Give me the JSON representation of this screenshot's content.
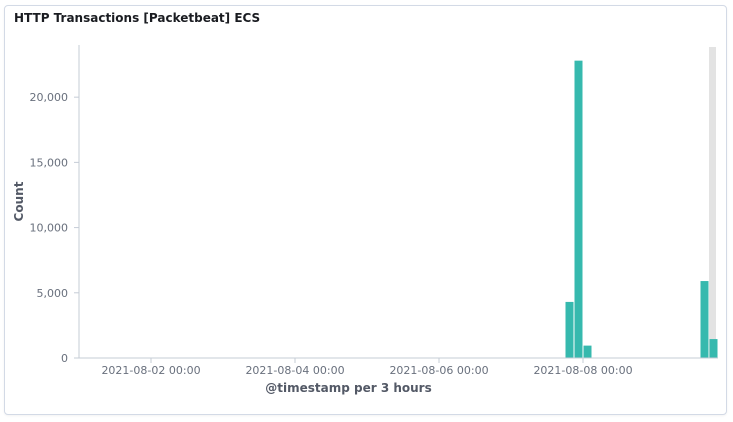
{
  "panel": {
    "title": "HTTP Transactions [Packetbeat] ECS"
  },
  "chart_data": {
    "type": "bar",
    "title": "HTTP Transactions [Packetbeat] ECS",
    "xlabel": "@timestamp per 3 hours",
    "ylabel": "Count",
    "ylim": [
      0,
      24000
    ],
    "y_ticks": [
      0,
      5000,
      10000,
      15000,
      20000
    ],
    "y_tick_labels": [
      "0",
      "5,000",
      "10,000",
      "15,000",
      "20,000"
    ],
    "x_range": [
      "2021-08-01 00:00",
      "2021-08-09 18:00"
    ],
    "x_tick_labels": [
      "2021-08-02 00:00",
      "2021-08-04 00:00",
      "2021-08-06 00:00",
      "2021-08-08 00:00"
    ],
    "x_tick_values": [
      "2021-08-02 00:00",
      "2021-08-04 00:00",
      "2021-08-06 00:00",
      "2021-08-08 00:00"
    ],
    "bar_interval_hours": 3,
    "series": [
      {
        "values": [
          {
            "x": "2021-08-07 18:00",
            "y": 4300
          },
          {
            "x": "2021-08-07 21:00",
            "y": 22800
          },
          {
            "x": "2021-08-08 00:00",
            "y": 950
          },
          {
            "x": "2021-08-09 15:00",
            "y": 5900
          },
          {
            "x": "2021-08-09 18:00",
            "y": 1450
          }
        ]
      }
    ],
    "partial_bucket_from": "2021-08-09 18:00",
    "grid": false,
    "colors": {
      "bar": "#36b9ae",
      "partial_bucket": "#e3e3e3",
      "axis": "#c5ccd6",
      "tick_text": "#69707d"
    }
  }
}
